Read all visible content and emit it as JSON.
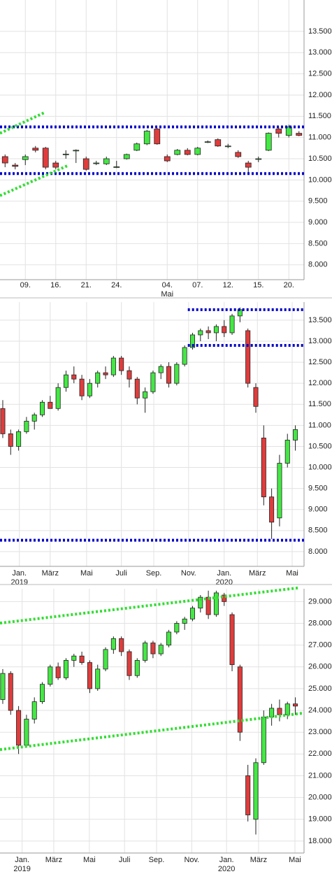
{
  "chart_data": [
    {
      "type": "candlestick",
      "up_color": "#44e844",
      "down_color": "#e03c3c",
      "grid": true,
      "x": [
        0,
        1,
        2,
        3,
        4,
        5,
        6,
        7,
        8,
        9,
        10,
        11,
        12,
        13,
        14,
        15,
        16,
        17,
        18,
        19,
        20,
        21,
        22,
        23,
        24,
        25,
        26,
        27,
        28,
        29
      ],
      "open": [
        10550,
        10350,
        10480,
        10750,
        10750,
        10400,
        10600,
        10700,
        10500,
        10400,
        10380,
        10300,
        10500,
        10700,
        10850,
        11200,
        10550,
        10600,
        10700,
        10600,
        10900,
        10950,
        10800,
        10650,
        10400,
        10500,
        10700,
        11200,
        11050,
        11100
      ],
      "high": [
        10600,
        10400,
        10600,
        10800,
        10780,
        10450,
        10700,
        10720,
        10550,
        10450,
        10550,
        10450,
        10620,
        10880,
        11180,
        11230,
        10600,
        10730,
        10750,
        10780,
        10930,
        10980,
        10850,
        10700,
        10450,
        10550,
        11120,
        11250,
        11300,
        11150
      ],
      "low": [
        10300,
        10250,
        10350,
        10650,
        10250,
        10250,
        10500,
        10400,
        10220,
        10350,
        10350,
        10280,
        10480,
        10680,
        10820,
        10830,
        10420,
        10580,
        10580,
        10580,
        10870,
        10780,
        10750,
        10520,
        10180,
        10420,
        10680,
        11000,
        11000,
        11030
      ],
      "close": [
        10400,
        10320,
        10550,
        10700,
        10300,
        10300,
        10610,
        10700,
        10250,
        10400,
        10500,
        10310,
        10600,
        10850,
        11150,
        10850,
        10450,
        10700,
        10600,
        10750,
        10900,
        10800,
        10800,
        10550,
        10300,
        10500,
        11100,
        11100,
        11250,
        11050
      ],
      "xlim": [
        -0.5,
        29.5
      ],
      "ylim": [
        7650,
        14240
      ],
      "xticks": [
        {
          "value": 2,
          "label": "09."
        },
        {
          "value": 5,
          "label": "16."
        },
        {
          "value": 8,
          "label": "21."
        },
        {
          "value": 11,
          "label": "24."
        },
        {
          "value": 16,
          "label": "04."
        },
        {
          "value": 19,
          "label": "07."
        },
        {
          "value": 22,
          "label": "12."
        },
        {
          "value": 25,
          "label": "15."
        },
        {
          "value": 28,
          "label": "20."
        }
      ],
      "xticks_sub": [
        {
          "value": 16,
          "label": "Mai"
        }
      ],
      "yticks": [
        {
          "value": 8000,
          "label": "8.000"
        },
        {
          "value": 8500,
          "label": "8.500"
        },
        {
          "value": 9000,
          "label": "9.000"
        },
        {
          "value": 9500,
          "label": "9.500"
        },
        {
          "value": 10000,
          "label": "10.000"
        },
        {
          "value": 10500,
          "label": "10.500"
        },
        {
          "value": 11000,
          "label": "11.000"
        },
        {
          "value": 11500,
          "label": "11.500"
        },
        {
          "value": 12000,
          "label": "12.000"
        },
        {
          "value": 12500,
          "label": "12.500"
        },
        {
          "value": 13000,
          "label": "13.000"
        },
        {
          "value": 13500,
          "label": "13.500"
        }
      ],
      "lines": [
        {
          "x": [
            -0.5,
            29.5
          ],
          "y": [
            11250,
            11250
          ],
          "color": "#0000cc"
        },
        {
          "x": [
            -0.5,
            29.5
          ],
          "y": [
            10150,
            10150
          ],
          "color": "#0000cc"
        },
        {
          "x": [
            -0.5,
            4
          ],
          "y": [
            11100,
            11600
          ],
          "color": "#33dd33"
        },
        {
          "x": [
            -0.5,
            6.2
          ],
          "y": [
            9630,
            10340
          ],
          "color": "#33dd33"
        }
      ]
    },
    {
      "type": "candlestick",
      "up_color": "#44e844",
      "down_color": "#e03c3c",
      "grid": true,
      "x": [
        0,
        1,
        2,
        3,
        4,
        5,
        6,
        7,
        8,
        9,
        10,
        11,
        12,
        13,
        14,
        15,
        16,
        17,
        18,
        19,
        20,
        21,
        22,
        23,
        24,
        25,
        26,
        27,
        28,
        29,
        30,
        31,
        32,
        33,
        34,
        35,
        36,
        37
      ],
      "open": [
        11400,
        10800,
        10500,
        10850,
        11100,
        11250,
        11550,
        11400,
        11900,
        12200,
        12100,
        11700,
        12000,
        12250,
        12200,
        12600,
        12300,
        12100,
        11650,
        11800,
        12250,
        12400,
        12000,
        12450,
        12850,
        13150,
        13250,
        13200,
        13350,
        13200,
        13600,
        13250,
        11900,
        10700,
        9300,
        8800,
        10100,
        10650
      ],
      "high": [
        11600,
        10900,
        10900,
        11200,
        11300,
        11600,
        11700,
        12000,
        12300,
        12400,
        12200,
        12100,
        12300,
        12400,
        12650,
        12650,
        12400,
        12150,
        11900,
        12300,
        12450,
        12500,
        12500,
        12900,
        13200,
        13300,
        13350,
        13400,
        13500,
        13650,
        13800,
        13300,
        12000,
        11000,
        9500,
        10300,
        10800,
        11000
      ],
      "low": [
        10700,
        10300,
        10400,
        10800,
        10900,
        11200,
        11400,
        11350,
        11800,
        12000,
        11600,
        11650,
        11900,
        12100,
        12150,
        12200,
        11900,
        11500,
        11300,
        11750,
        12100,
        11900,
        11950,
        12400,
        12800,
        13000,
        13050,
        13000,
        13100,
        13150,
        13450,
        11900,
        11300,
        9100,
        8300,
        8600,
        10000,
        10400
      ],
      "close": [
        10800,
        10500,
        10850,
        11100,
        11250,
        11550,
        11400,
        11900,
        12200,
        12100,
        11700,
        12000,
        12250,
        12200,
        12600,
        12300,
        12100,
        11650,
        11800,
        12250,
        12400,
        12000,
        12450,
        12850,
        13150,
        13250,
        13200,
        13350,
        13200,
        13600,
        13750,
        12000,
        11450,
        9300,
        8700,
        10100,
        10650,
        10900
      ],
      "xlim": [
        -0.35,
        38.1
      ],
      "ylim": [
        7650,
        13930
      ],
      "xticks": [
        {
          "value": 2.1,
          "label": "Jan."
        },
        {
          "value": 6,
          "label": "März"
        },
        {
          "value": 10.6,
          "label": "Mai"
        },
        {
          "value": 15,
          "label": "Juli"
        },
        {
          "value": 19.1,
          "label": "Sep."
        },
        {
          "value": 23.5,
          "label": "Nov."
        },
        {
          "value": 28,
          "label": "Jan."
        },
        {
          "value": 32.2,
          "label": "März"
        },
        {
          "value": 36.6,
          "label": "Mai"
        }
      ],
      "xticks_sub": [
        {
          "value": 2.1,
          "label": "2019"
        },
        {
          "value": 28,
          "label": "2020"
        }
      ],
      "yticks": [
        {
          "value": 8000,
          "label": "8.000"
        },
        {
          "value": 8500,
          "label": "8.500"
        },
        {
          "value": 9000,
          "label": "9.000"
        },
        {
          "value": 9500,
          "label": "9.500"
        },
        {
          "value": 10000,
          "label": "10.000"
        },
        {
          "value": 10500,
          "label": "10.500"
        },
        {
          "value": 11000,
          "label": "11.000"
        },
        {
          "value": 11500,
          "label": "11.500"
        },
        {
          "value": 12000,
          "label": "12.000"
        },
        {
          "value": 12500,
          "label": "12.500"
        },
        {
          "value": 13000,
          "label": "13.000"
        },
        {
          "value": 13500,
          "label": "13.500"
        }
      ],
      "lines": [
        {
          "x": [
            23.4,
            38.1
          ],
          "y": [
            13750,
            13750
          ],
          "color": "#0000cc"
        },
        {
          "x": [
            23.4,
            38.1
          ],
          "y": [
            12900,
            12900
          ],
          "color": "#0000cc"
        },
        {
          "x": [
            -0.35,
            38.1
          ],
          "y": [
            8270,
            8270
          ],
          "color": "#0000cc"
        }
      ]
    },
    {
      "type": "candlestick",
      "up_color": "#44e844",
      "down_color": "#e03c3c",
      "grid": true,
      "x": [
        0,
        1,
        2,
        3,
        4,
        5,
        6,
        7,
        8,
        9,
        10,
        11,
        12,
        13,
        14,
        15,
        16,
        17,
        18,
        19,
        20,
        21,
        22,
        23,
        24,
        25,
        26,
        27,
        28,
        29,
        30,
        31,
        32,
        33,
        34,
        35,
        36,
        37
      ],
      "open": [
        24500,
        25700,
        24000,
        22400,
        23600,
        24400,
        25200,
        26000,
        25500,
        26300,
        26500,
        26200,
        25000,
        25900,
        26800,
        27300,
        26700,
        25600,
        26300,
        27100,
        26600,
        27000,
        27600,
        28000,
        28200,
        28700,
        29200,
        28400,
        29300,
        28400,
        26000,
        21000,
        19000,
        21600,
        23700,
        24100,
        23800,
        24300
      ],
      "high": [
        25900,
        25800,
        24200,
        23800,
        24600,
        25300,
        26100,
        26200,
        26400,
        26600,
        26700,
        26300,
        26100,
        26900,
        27400,
        27400,
        26800,
        26400,
        27200,
        27200,
        27100,
        27700,
        28100,
        28300,
        28800,
        29300,
        29500,
        29500,
        29400,
        28500,
        26100,
        21500,
        21800,
        24000,
        24300,
        24500,
        24400,
        24600
      ],
      "low": [
        24300,
        23800,
        22000,
        22300,
        23400,
        24300,
        25100,
        25400,
        25400,
        26000,
        26100,
        24800,
        24900,
        25800,
        26600,
        26500,
        25400,
        25500,
        26200,
        26400,
        26500,
        26900,
        27500,
        27700,
        28100,
        28500,
        28200,
        28300,
        28800,
        25800,
        22600,
        18900,
        18300,
        21500,
        23300,
        23500,
        23600,
        23800
      ],
      "close": [
        25700,
        24000,
        22400,
        23600,
        24400,
        25200,
        26000,
        25500,
        26300,
        26500,
        26200,
        25000,
        25900,
        26800,
        27300,
        26700,
        25600,
        26300,
        27100,
        26600,
        27000,
        27600,
        28000,
        28200,
        28700,
        29200,
        28400,
        29400,
        29000,
        26100,
        23000,
        19200,
        21600,
        23700,
        24100,
        23800,
        24300,
        24200
      ],
      "xlim": [
        -0.35,
        38.1
      ],
      "ylim": [
        17450,
        29590
      ],
      "xticks": [
        {
          "value": 2.45,
          "label": "Jan."
        },
        {
          "value": 6.45,
          "label": "März"
        },
        {
          "value": 10.95,
          "label": "Mai"
        },
        {
          "value": 15.4,
          "label": "Juli"
        },
        {
          "value": 19.45,
          "label": "Sep."
        },
        {
          "value": 23.9,
          "label": "Nov."
        },
        {
          "value": 28.3,
          "label": "Jan."
        },
        {
          "value": 32.35,
          "label": "März"
        },
        {
          "value": 36.95,
          "label": "Mai"
        }
      ],
      "xticks_sub": [
        {
          "value": 2.45,
          "label": "2019"
        },
        {
          "value": 28.3,
          "label": "2020"
        }
      ],
      "yticks": [
        {
          "value": 18000,
          "label": "18.000"
        },
        {
          "value": 19000,
          "label": "19.000"
        },
        {
          "value": 20000,
          "label": "20.000"
        },
        {
          "value": 21000,
          "label": "21.000"
        },
        {
          "value": 22000,
          "label": "22.000"
        },
        {
          "value": 23000,
          "label": "23.000"
        },
        {
          "value": 24000,
          "label": "24.000"
        },
        {
          "value": 25000,
          "label": "25.000"
        },
        {
          "value": 26000,
          "label": "26.000"
        },
        {
          "value": 27000,
          "label": "27.000"
        },
        {
          "value": 28000,
          "label": "28.000"
        },
        {
          "value": 29000,
          "label": "29.000"
        }
      ],
      "lines": [
        {
          "x": [
            -0.35,
            37.4
          ],
          "y": [
            28010,
            29630
          ],
          "color": "#33dd33"
        },
        {
          "x": [
            -0.35,
            38.1
          ],
          "y": [
            22200,
            23880
          ],
          "color": "#33dd33"
        }
      ]
    }
  ]
}
